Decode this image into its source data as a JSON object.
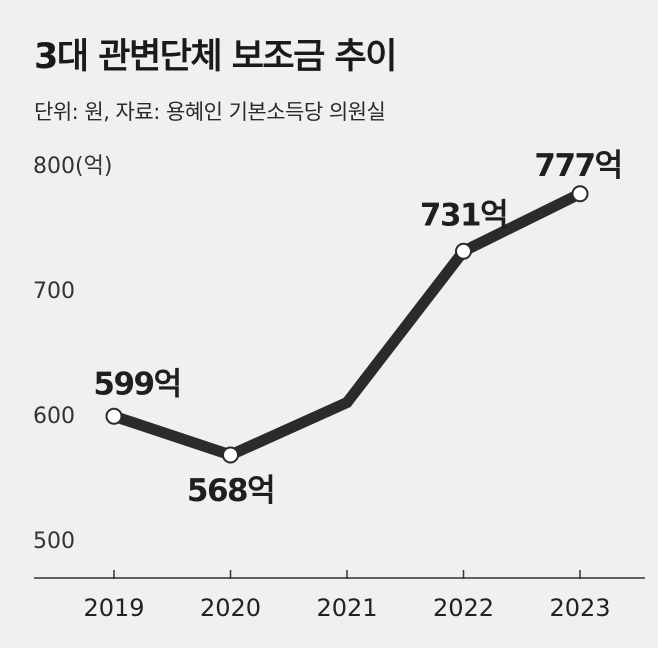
{
  "header": {
    "title": "3대 관변단체 보조금 추이",
    "subtitle": "단위: 원, 자료: 용혜인 기본소득당 의원실"
  },
  "colors": {
    "background": "#f0f0f0",
    "line": "#2b2b2b",
    "marker_fill": "#ffffff"
  },
  "chart_data": {
    "type": "line",
    "title": "3대 관변단체 보조금 추이",
    "subtitle": "단위: 원, 자료: 용혜인 기본소득당 의원실",
    "categories": [
      "2019",
      "2020",
      "2021",
      "2022",
      "2023"
    ],
    "series": [
      {
        "values": [
          599,
          568,
          610,
          731,
          777
        ]
      }
    ],
    "data_labels": [
      "599억",
      "568억",
      "",
      "731억",
      "777억"
    ],
    "ylim": [
      500,
      800
    ],
    "yticks": [
      500,
      600,
      700,
      800
    ],
    "ytick_labels": [
      "500",
      "600",
      "700",
      "800(억)"
    ],
    "xlabel": "",
    "ylabel": "",
    "grid": false,
    "legend": "none"
  }
}
